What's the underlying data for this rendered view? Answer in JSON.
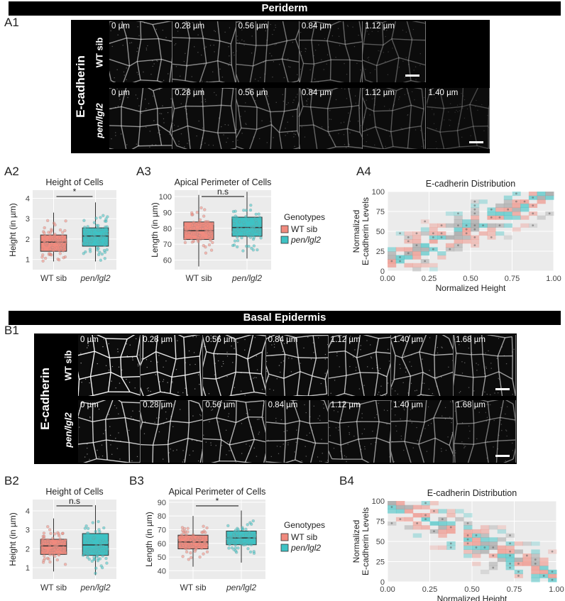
{
  "periderm": {
    "banner": "Periderm",
    "a1_label": "A1",
    "stain": "E-cadherin",
    "row1_label": "WT sib",
    "row2_label": "pen/lgl2",
    "row1_depths": [
      "0 µm",
      "0.28 µm",
      "0.56 µm",
      "0.84 µm",
      "1.12 µm"
    ],
    "row2_depths": [
      "0 µm",
      "0.28 µm",
      "0.56 µm",
      "0.84 µm",
      "1.12 µm",
      "1.40 µm"
    ]
  },
  "basal": {
    "banner": "Basal Epidermis",
    "b1_label": "B1",
    "stain": "E-cadherin",
    "row1_label": "WT sib",
    "row2_label": "pen/lgl2",
    "row1_depths": [
      "0 µm",
      "0.28 µm",
      "0.56 µm",
      "0.84 µm",
      "1.12 µm",
      "1.40 µm",
      "1.68 µm"
    ],
    "row2_depths": [
      "0 µm",
      "0.28 µm",
      "0.56 µm",
      "0.84 µm",
      "1.12 µm",
      "1.40 µm",
      "1.68 µm"
    ]
  },
  "legend": {
    "title": "Genotypes",
    "items": [
      "WT sib",
      "pen/lgl2"
    ],
    "colors": [
      "#F08A7E",
      "#3FC2C4"
    ]
  },
  "chart_data": [
    {
      "id": "A2",
      "type": "box",
      "title": "Height of Cells",
      "ylabel": "Height (in µm)",
      "categories": [
        "WT sib",
        "pen/lgl2"
      ],
      "ylim": [
        0.5,
        4.4
      ],
      "yticks": [
        1,
        2,
        3,
        4
      ],
      "series": [
        {
          "name": "WT sib",
          "q1": 1.4,
          "median": 1.85,
          "q3": 2.2,
          "min": 0.9,
          "max": 3.3
        },
        {
          "name": "pen/lgl2",
          "q1": 1.65,
          "median": 2.15,
          "q3": 2.55,
          "min": 0.9,
          "max": 3.8
        }
      ],
      "annotation": "*"
    },
    {
      "id": "A3",
      "type": "box",
      "title": "Apical Perimeter of Cells",
      "ylabel": "Length (in µm)",
      "categories": [
        "WT sib",
        "pen/lgl2"
      ],
      "ylim": [
        54,
        104
      ],
      "yticks": [
        60,
        70,
        80,
        90,
        100
      ],
      "series": [
        {
          "name": "WT sib",
          "q1": 73,
          "median": 78.5,
          "q3": 84,
          "min": 56,
          "max": 101
        },
        {
          "name": "pen/lgl2",
          "q1": 75,
          "median": 80.5,
          "q3": 87,
          "min": 61,
          "max": 103
        }
      ],
      "annotation": "n.s"
    },
    {
      "id": "A4",
      "type": "heatmap",
      "title": "E-cadherin Distribution",
      "xlabel": "Normalized Height",
      "ylabel": "Normalized E-cadherin Levels",
      "xlim": [
        0,
        1
      ],
      "ylim": [
        0,
        100
      ],
      "xticks": [
        "0.00",
        "0.25",
        "0.50",
        "0.75",
        "1.00"
      ],
      "yticks": [
        "0",
        "25",
        "50",
        "75",
        "100"
      ],
      "trend": "increasing"
    },
    {
      "id": "B2",
      "type": "box",
      "title": "Height of Cells",
      "ylabel": "Height (in µm)",
      "categories": [
        "WT sib",
        "pen/lgl2"
      ],
      "ylim": [
        0.4,
        4.6
      ],
      "yticks": [
        1,
        2,
        3,
        4
      ],
      "series": [
        {
          "name": "WT sib",
          "q1": 1.7,
          "median": 2.15,
          "q3": 2.5,
          "min": 0.8,
          "max": 3.6
        },
        {
          "name": "pen/lgl2",
          "q1": 1.65,
          "median": 2.2,
          "q3": 2.8,
          "min": 0.6,
          "max": 4.3
        }
      ],
      "annotation": "n.s"
    },
    {
      "id": "B3",
      "type": "box",
      "title": "Apical Perimeter of Cells",
      "ylabel": "Length (in µm)",
      "categories": [
        "WT sib",
        "pen/lgl2"
      ],
      "ylim": [
        34,
        92
      ],
      "yticks": [
        40,
        50,
        60,
        70,
        80,
        90
      ],
      "series": [
        {
          "name": "WT sib",
          "q1": 56,
          "median": 61,
          "q3": 66,
          "min": 43,
          "max": 80
        },
        {
          "name": "pen/lgl2",
          "q1": 59,
          "median": 64,
          "q3": 69,
          "min": 46,
          "max": 84
        }
      ],
      "annotation": "*"
    },
    {
      "id": "B4",
      "type": "heatmap",
      "title": "E-cadherin Distribution",
      "xlabel": "Normalized Height",
      "ylabel": "Normalized E-cadherin Levels",
      "xlim": [
        0,
        1
      ],
      "ylim": [
        0,
        100
      ],
      "xticks": [
        "0.00",
        "0.25",
        "0.50",
        "0.75",
        "1.00"
      ],
      "yticks": [
        "0",
        "25",
        "50",
        "75",
        "100"
      ],
      "trend": "decreasing"
    }
  ],
  "labels": {
    "a2": "A2",
    "a3": "A3",
    "a4": "A4",
    "b2": "B2",
    "b3": "B3",
    "b4": "B4"
  }
}
